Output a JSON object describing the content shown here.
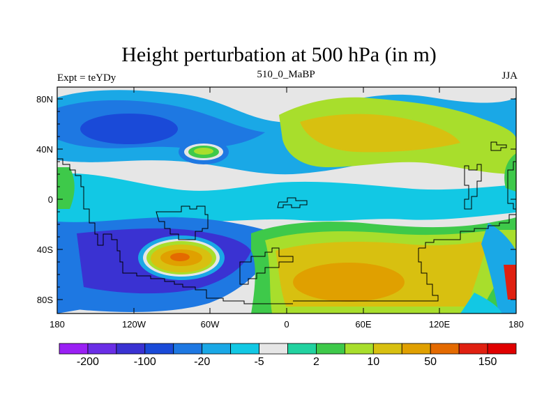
{
  "chart_data": {
    "type": "heatmap",
    "title": "Height perturbation at 500 hPa (in m)",
    "left_subtitle": "Expt = teYDy",
    "center_subtitle": "510_0_MaBP",
    "right_subtitle": "JJA",
    "x_ticks": [
      "180",
      "120W",
      "60W",
      "0",
      "60E",
      "120E",
      "180"
    ],
    "y_ticks": [
      "80N",
      "40N",
      "0",
      "40S",
      "80S"
    ],
    "colorbar_labels": [
      "-200",
      "-100",
      "-20",
      "-5",
      "2",
      "10",
      "50",
      "150"
    ],
    "colorbar_colors": [
      "#9a20f4",
      "#6a2ee6",
      "#3a32d2",
      "#1a4ad8",
      "#1e78e2",
      "#1aa8e6",
      "#12c8e4",
      "#e6e6e6",
      "#22d2a0",
      "#3ec94a",
      "#a8de2c",
      "#d8c010",
      "#e0a000",
      "#e46a00",
      "#e02010",
      "#e00000"
    ],
    "colors": {
      "ocean_neutral": "#e6e6e6",
      "deep_blue": "#3a32d2",
      "blue": "#1e78e2",
      "cyan": "#1aa8e6",
      "light_cyan": "#12c8e4",
      "green": "#3ec94a",
      "yellow_green": "#a8de2c",
      "yellow": "#d8c010",
      "orange": "#e0a000",
      "dark_orange": "#e46a00",
      "red": "#e02010"
    }
  }
}
